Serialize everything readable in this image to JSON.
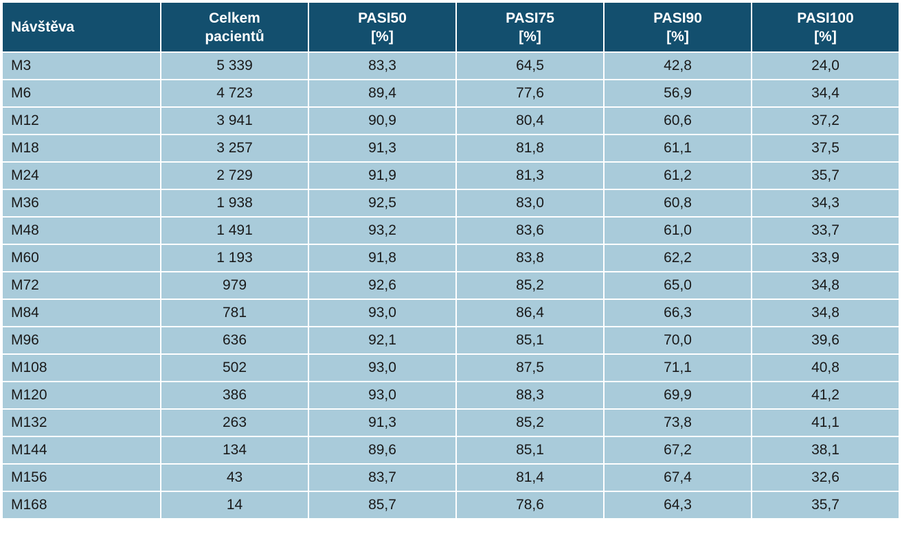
{
  "table": {
    "header": [
      [
        "Návštěva"
      ],
      [
        "Celkem",
        "pacientů"
      ],
      [
        "PASI50",
        "[%]"
      ],
      [
        "PASI75",
        "[%]"
      ],
      [
        "PASI90",
        "[%]"
      ],
      [
        "PASI100",
        "[%]"
      ]
    ],
    "rows": [
      [
        "M3",
        "5 339",
        "83,3",
        "64,5",
        "42,8",
        "24,0"
      ],
      [
        "M6",
        "4 723",
        "89,4",
        "77,6",
        "56,9",
        "34,4"
      ],
      [
        "M12",
        "3 941",
        "90,9",
        "80,4",
        "60,6",
        "37,2"
      ],
      [
        "M18",
        "3 257",
        "91,3",
        "81,8",
        "61,1",
        "37,5"
      ],
      [
        "M24",
        "2 729",
        "91,9",
        "81,3",
        "61,2",
        "35,7"
      ],
      [
        "M36",
        "1 938",
        "92,5",
        "83,0",
        "60,8",
        "34,3"
      ],
      [
        "M48",
        "1 491",
        "93,2",
        "83,6",
        "61,0",
        "33,7"
      ],
      [
        "M60",
        "1 193",
        "91,8",
        "83,8",
        "62,2",
        "33,9"
      ],
      [
        "M72",
        "979",
        "92,6",
        "85,2",
        "65,0",
        "34,8"
      ],
      [
        "M84",
        "781",
        "93,0",
        "86,4",
        "66,3",
        "34,8"
      ],
      [
        "M96",
        "636",
        "92,1",
        "85,1",
        "70,0",
        "39,6"
      ],
      [
        "M108",
        "502",
        "93,0",
        "87,5",
        "71,1",
        "40,8"
      ],
      [
        "M120",
        "386",
        "93,0",
        "88,3",
        "69,9",
        "41,2"
      ],
      [
        "M132",
        "263",
        "91,3",
        "85,2",
        "73,8",
        "41,1"
      ],
      [
        "M144",
        "134",
        "89,6",
        "85,1",
        "67,2",
        "38,1"
      ],
      [
        "M156",
        "43",
        "83,7",
        "81,4",
        "67,4",
        "32,6"
      ],
      [
        "M168",
        "14",
        "85,7",
        "78,6",
        "64,3",
        "35,7"
      ]
    ]
  }
}
